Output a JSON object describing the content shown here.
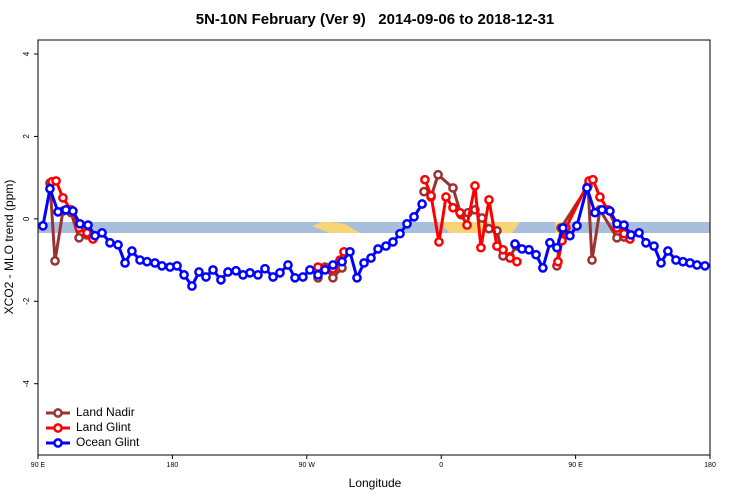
{
  "chart_data": {
    "type": "line",
    "title": "5N-10N February (Ver 9)   2014-09-06 to 2018-12-31",
    "xlabel": "Longitude",
    "ylabel": "XCO2 - MLO trend (ppm)",
    "xlim": [
      90,
      540
    ],
    "xticks": [
      {
        "value": 90,
        "label": "90 E"
      },
      {
        "value": 180,
        "label": "180"
      },
      {
        "value": 270,
        "label": "90 W"
      },
      {
        "value": 360,
        "label": "0"
      },
      {
        "value": 450,
        "label": "90 E"
      },
      {
        "value": 540,
        "label": "180"
      }
    ],
    "ylim": [
      -5.73,
      4.34
    ],
    "yticks": [
      -4,
      -2,
      0,
      2,
      4
    ],
    "legend": "bottom-left",
    "series": [
      {
        "name": "Land Nadir",
        "color": "#993333",
        "x": [
          98,
          101.4,
          106.7,
          112.1,
          117.5,
          122.8,
          null,
          277.5,
          282.2,
          287.5,
          293.6,
          null,
          348.5,
          353.2,
          357.9,
          367.9,
          373.3,
          378,
          382.6,
          387.3,
          392,
          397.3,
          401.4,
          406.1,
          410.1,
          null,
          437.5,
          440.2,
          458.3,
          461,
          466.3,
          477.7,
          482.4
        ],
        "values": [
          0.87,
          -1.02,
          0.19,
          0.15,
          -0.46,
          -0.39,
          null,
          -1.43,
          -1.17,
          -1.43,
          -1.19,
          null,
          0.66,
          0.53,
          1.07,
          0.75,
          0.1,
          0.15,
          0.22,
          0.02,
          -0.24,
          -0.29,
          -0.9,
          -0.92,
          -0.66,
          null,
          -1.14,
          -0.22,
          0.8,
          -1.0,
          0.22,
          -0.46,
          -0.44
        ]
      },
      {
        "name": "Land Glint",
        "color": "#ff0000",
        "x": [
          99.4,
          102.1,
          106.7,
          112.1,
          117.5,
          122.8,
          126.8,
          null,
          277.5,
          282.2,
          287.5,
          292.2,
          294.9,
          null,
          349.1,
          353.2,
          358.5,
          363.2,
          367.9,
          372.6,
          377.3,
          382.6,
          386.6,
          392,
          397.3,
          401.4,
          406.1,
          410.7,
          null,
          438.2,
          440.9,
          443.5,
          459,
          461.6,
          466.3,
          471.7,
          477.7,
          482.4,
          486.4
        ],
        "values": [
          0.9,
          0.92,
          0.51,
          0.22,
          -0.22,
          -0.34,
          -0.49,
          null,
          -1.17,
          -1.21,
          -1.21,
          -1.0,
          -0.8,
          null,
          0.95,
          0.56,
          -0.56,
          0.53,
          0.27,
          0.15,
          -0.15,
          0.8,
          -0.7,
          0.46,
          -0.66,
          -0.75,
          -0.95,
          -1.04,
          null,
          -1.04,
          -0.53,
          -0.22,
          0.92,
          0.95,
          0.53,
          0.22,
          -0.22,
          -0.36,
          -0.49
        ]
      },
      {
        "name": "Ocean Glint",
        "color": "#0000ff",
        "x": [
          93.3,
          98,
          103.4,
          108.7,
          113.4,
          118.1,
          123.5,
          128.2,
          132.9,
          138.2,
          143.6,
          148.3,
          152.9,
          158.3,
          163,
          168.3,
          173,
          178.4,
          183.1,
          187.8,
          193.1,
          197.8,
          202.5,
          207.2,
          212.5,
          217.2,
          222.6,
          227.3,
          232,
          237.3,
          242,
          247.4,
          252,
          257.4,
          262.1,
          267.4,
          272.1,
          277.5,
          282.2,
          287.5,
          293.6,
          298.9,
          303.6,
          308.3,
          313,
          317.7,
          323,
          327.7,
          332.4,
          337.1,
          341.8,
          347.2,
          null,
          409.4,
          414.1,
          418.8,
          423.5,
          428.1,
          432.8,
          437.5,
          441.5,
          446.2,
          450.9,
          457.6,
          463,
          467.7,
          473,
          477.7,
          482.4,
          487.1,
          492.5,
          497.1,
          502.5,
          507.2,
          511.8,
          517.2,
          521.9,
          526.6,
          531.3,
          536.6
        ],
        "values": [
          -0.17,
          0.73,
          0.17,
          0.22,
          0.19,
          -0.12,
          -0.15,
          -0.41,
          -0.34,
          -0.58,
          -0.63,
          -1.07,
          -0.78,
          -1.0,
          -1.04,
          -1.07,
          -1.14,
          -1.17,
          -1.14,
          -1.36,
          -1.63,
          -1.29,
          -1.41,
          -1.24,
          -1.48,
          -1.29,
          -1.26,
          -1.36,
          -1.31,
          -1.36,
          -1.21,
          -1.41,
          -1.31,
          -1.12,
          -1.43,
          -1.41,
          -1.24,
          -1.36,
          -1.24,
          -1.12,
          -1.04,
          -0.8,
          -1.43,
          -1.07,
          -0.95,
          -0.73,
          -0.66,
          -0.56,
          -0.36,
          -0.12,
          0.05,
          0.36,
          null,
          -0.61,
          -0.73,
          -0.75,
          -0.87,
          -1.19,
          -0.58,
          -0.7,
          -0.22,
          -0.41,
          -0.17,
          0.75,
          0.15,
          0.22,
          0.19,
          -0.12,
          -0.15,
          -0.39,
          -0.34,
          -0.58,
          -0.66,
          -1.07,
          -0.78,
          -1.0,
          -1.04,
          -1.07,
          -1.12,
          -1.14
        ]
      }
    ]
  }
}
